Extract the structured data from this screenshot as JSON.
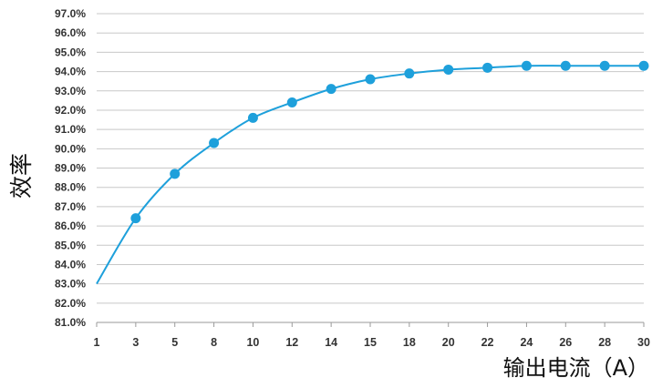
{
  "chart_data": {
    "type": "line",
    "title": "",
    "xlabel": "输出电流（A）",
    "ylabel": "效率",
    "x_categories": [
      "1",
      "3",
      "5",
      "8",
      "10",
      "12",
      "14",
      "15",
      "18",
      "20",
      "22",
      "24",
      "26",
      "28",
      "30"
    ],
    "y_ticks": [
      "81.0%",
      "82.0%",
      "83.0%",
      "84.0%",
      "85.0%",
      "86.0%",
      "87.0%",
      "88.0%",
      "89.0%",
      "90.0%",
      "91.0%",
      "92.0%",
      "93.0%",
      "94.0%",
      "95.0%",
      "96.0%",
      "97.0%"
    ],
    "ylim": [
      81.0,
      97.0
    ],
    "grid": true,
    "legend": "none",
    "series": [
      {
        "color": "#1ea0db",
        "values": [
          83.0,
          86.4,
          88.7,
          90.3,
          91.6,
          92.4,
          93.1,
          93.6,
          93.9,
          94.1,
          94.2,
          94.3,
          94.3,
          94.3,
          94.3
        ],
        "markers": [
          false,
          true,
          true,
          true,
          true,
          true,
          true,
          true,
          true,
          true,
          true,
          true,
          true,
          true,
          true
        ]
      }
    ]
  }
}
